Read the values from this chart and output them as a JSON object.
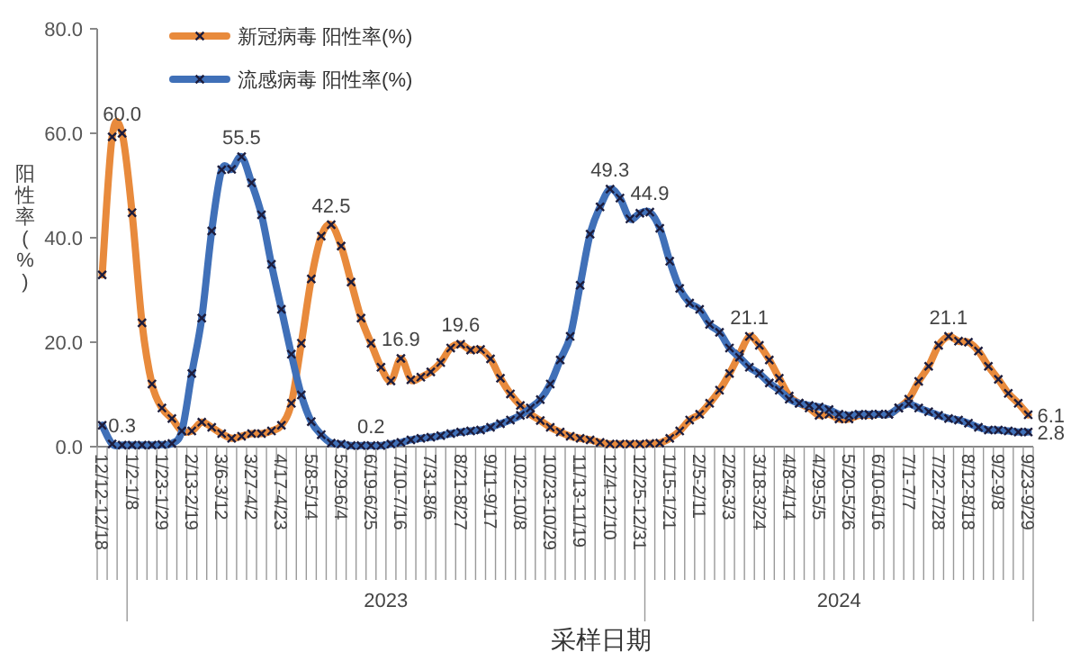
{
  "chart_data": {
    "type": "line",
    "xlabel": "采样日期",
    "ylabel": "阳性率(%)",
    "annotations": [
      "2023",
      "2024"
    ],
    "categories": [
      "12/12-12/18",
      null,
      null,
      "1/2-1/8",
      null,
      null,
      "1/23-1/29",
      null,
      null,
      "2/13-2/19",
      null,
      null,
      "3/6-3/12",
      null,
      null,
      "3/27-4/2",
      null,
      null,
      "4/17-4/23",
      null,
      null,
      "5/8-5/14",
      null,
      null,
      "5/29-6/4",
      null,
      null,
      "6/19-6/25",
      null,
      null,
      "7/10-7/16",
      null,
      null,
      "7/31-8/6",
      null,
      null,
      "8/21-8/27",
      null,
      null,
      "9/11-9/17",
      null,
      null,
      "10/2-10/8",
      null,
      null,
      "10/23-10/29",
      null,
      null,
      "11/13-11/19",
      null,
      null,
      "12/4-12/10",
      null,
      null,
      "12/25-12/31",
      null,
      null,
      "1/15-1/21",
      null,
      null,
      "2/5-2/11",
      null,
      null,
      "2/26-3/3",
      null,
      null,
      "3/18-3/24",
      null,
      null,
      "4/8-4/14",
      null,
      null,
      "4/29-5/5",
      null,
      null,
      "5/20-5/26",
      null,
      null,
      "6/10-6/16",
      null,
      null,
      "7/1-7/7",
      null,
      null,
      "7/22-7/28",
      null,
      null,
      "8/12-8/18",
      null,
      null,
      "9/2-9/8",
      null,
      null,
      "9/23-9/29"
    ],
    "series": [
      {
        "name": "新冠病毒 阳性率(%)",
        "color": "#e88a3c",
        "values": [
          32.9,
          59.3,
          60.0,
          44.8,
          23.7,
          12.0,
          7.4,
          5.4,
          3.0,
          3.0,
          4.7,
          3.7,
          2.5,
          1.6,
          2.0,
          2.5,
          2.5,
          3.0,
          4.1,
          8.3,
          19.8,
          32.1,
          40.3,
          42.5,
          38.4,
          31.5,
          24.6,
          19.8,
          15.2,
          12.6,
          16.9,
          12.8,
          13.3,
          14.3,
          16.1,
          18.9,
          19.6,
          18.5,
          18.6,
          16.8,
          13.1,
          10.1,
          7.9,
          6.2,
          5.0,
          3.7,
          2.8,
          2.0,
          1.6,
          1.3,
          0.8,
          0.5,
          0.5,
          0.5,
          0.5,
          0.6,
          0.7,
          1.6,
          3.0,
          5.1,
          6.2,
          8.3,
          10.8,
          14.0,
          17.7,
          21.1,
          19.4,
          16.6,
          13.1,
          9.7,
          8.3,
          7.4,
          6.0,
          6.2,
          5.3,
          5.3,
          6.0,
          6.0,
          6.2,
          6.2,
          7.4,
          9.1,
          12.5,
          15.4,
          19.4,
          21.1,
          20.2,
          20.0,
          18.3,
          15.4,
          12.9,
          10.2,
          8.3,
          6.1
        ],
        "value_labels": [
          null,
          null,
          "60.0",
          null,
          null,
          null,
          null,
          null,
          null,
          null,
          null,
          null,
          null,
          null,
          null,
          null,
          null,
          null,
          null,
          null,
          null,
          null,
          null,
          "42.5",
          null,
          null,
          null,
          null,
          null,
          null,
          "16.9",
          null,
          null,
          null,
          null,
          null,
          "19.6",
          null,
          null,
          null,
          null,
          null,
          null,
          null,
          null,
          null,
          null,
          null,
          null,
          null,
          null,
          null,
          null,
          null,
          null,
          null,
          null,
          null,
          null,
          null,
          null,
          null,
          null,
          null,
          null,
          "21.1",
          null,
          null,
          null,
          null,
          null,
          null,
          null,
          null,
          null,
          null,
          null,
          null,
          null,
          null,
          null,
          null,
          null,
          null,
          null,
          "21.1",
          null,
          null,
          null,
          null,
          null,
          null,
          null,
          "6.1"
        ]
      },
      {
        "name": "流感病毒 阳性率(%)",
        "color": "#4070b8",
        "values": [
          4.1,
          0.5,
          0.3,
          0.3,
          0.3,
          0.3,
          0.4,
          0.6,
          3.0,
          14.0,
          24.6,
          41.3,
          53.0,
          53.1,
          55.5,
          50.5,
          44.4,
          34.9,
          26.3,
          17.7,
          9.9,
          4.8,
          2.3,
          0.7,
          0.5,
          0.2,
          0.2,
          0.2,
          0.2,
          0.5,
          0.8,
          1.3,
          1.6,
          1.8,
          2.1,
          2.5,
          2.8,
          3.0,
          3.2,
          3.7,
          4.4,
          5.1,
          6.0,
          7.4,
          9.0,
          12.0,
          16.6,
          21.1,
          30.9,
          40.7,
          45.9,
          49.3,
          47.6,
          43.6,
          44.7,
          44.9,
          41.8,
          35.5,
          30.3,
          27.5,
          26.3,
          23.4,
          21.9,
          18.9,
          17.1,
          15.2,
          14.0,
          12.2,
          10.8,
          9.1,
          8.3,
          7.9,
          7.6,
          7.1,
          6.2,
          6.0,
          6.2,
          6.2,
          6.2,
          6.2,
          7.4,
          8.2,
          7.4,
          6.7,
          6.0,
          5.4,
          5.1,
          4.5,
          3.7,
          3.2,
          3.2,
          3.0,
          2.8,
          2.8
        ],
        "value_labels": [
          null,
          null,
          "0.3",
          null,
          null,
          null,
          null,
          null,
          null,
          null,
          null,
          null,
          null,
          null,
          "55.5",
          null,
          null,
          null,
          null,
          null,
          null,
          null,
          null,
          null,
          null,
          null,
          null,
          "0.2",
          null,
          null,
          null,
          null,
          null,
          null,
          null,
          null,
          null,
          null,
          null,
          null,
          null,
          null,
          null,
          null,
          null,
          null,
          null,
          null,
          null,
          null,
          null,
          "49.3",
          null,
          null,
          null,
          "44.9",
          null,
          null,
          null,
          null,
          null,
          null,
          null,
          null,
          null,
          null,
          null,
          null,
          null,
          null,
          null,
          null,
          null,
          null,
          null,
          null,
          null,
          null,
          null,
          null,
          null,
          null,
          null,
          null,
          null,
          null,
          null,
          null,
          null,
          null,
          null,
          null,
          null,
          "2.8"
        ]
      }
    ],
    "ylim": [
      0,
      80
    ],
    "yticks": [
      {
        "value": 0,
        "label": "0.0"
      },
      {
        "value": 20,
        "label": "20.0"
      },
      {
        "value": 40,
        "label": "40.0"
      },
      {
        "value": 60,
        "label": "60.0"
      },
      {
        "value": 80,
        "label": "80.0"
      }
    ],
    "legend": "top left",
    "marker": "cross"
  }
}
